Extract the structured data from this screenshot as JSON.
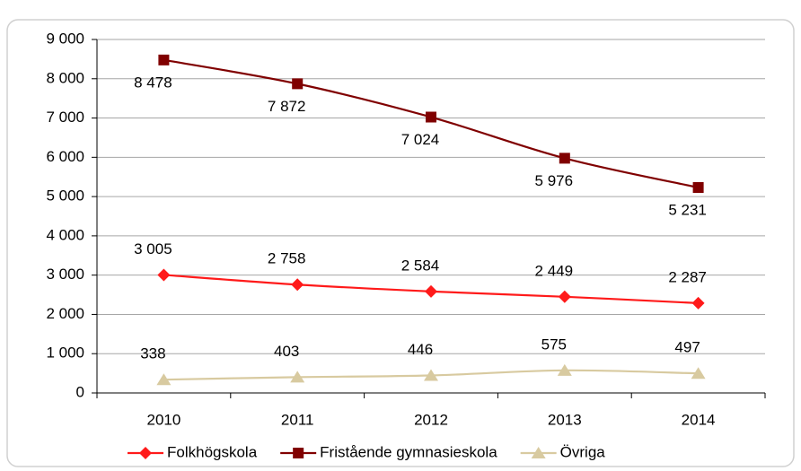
{
  "chart_data": {
    "type": "line",
    "categories": [
      "2010",
      "2011",
      "2012",
      "2013",
      "2014"
    ],
    "series": [
      {
        "name": "Folkhögskola",
        "color": "#ff1a1a",
        "marker": "diamond",
        "values": [
          3005,
          2758,
          2584,
          2449,
          2287
        ],
        "value_labels": [
          "3 005",
          "2 758",
          "2 584",
          "2 449",
          "2 287"
        ]
      },
      {
        "name": "Fristående gymnasieskola",
        "color": "#800000",
        "marker": "square",
        "values": [
          8478,
          7872,
          7024,
          5976,
          5231
        ],
        "value_labels": [
          "8 478",
          "7 872",
          "7 024",
          "5 976",
          "5 231"
        ]
      },
      {
        "name": "Övriga",
        "color": "#d8caa0",
        "marker": "triangle",
        "values": [
          338,
          403,
          446,
          575,
          497
        ],
        "value_labels": [
          "338",
          "403",
          "446",
          "575",
          "497"
        ]
      }
    ],
    "ylim": [
      0,
      9000
    ],
    "yticks": [
      {
        "value": 0,
        "label": "0"
      },
      {
        "value": 1000,
        "label": "1 000"
      },
      {
        "value": 2000,
        "label": "2 000"
      },
      {
        "value": 3000,
        "label": "3 000"
      },
      {
        "value": 4000,
        "label": "4 000"
      },
      {
        "value": 5000,
        "label": "5 000"
      },
      {
        "value": 6000,
        "label": "6 000"
      },
      {
        "value": 7000,
        "label": "7 000"
      },
      {
        "value": 8000,
        "label": "8 000"
      },
      {
        "value": 9000,
        "label": "9 000"
      }
    ],
    "grid": true,
    "legend": "bottom"
  }
}
